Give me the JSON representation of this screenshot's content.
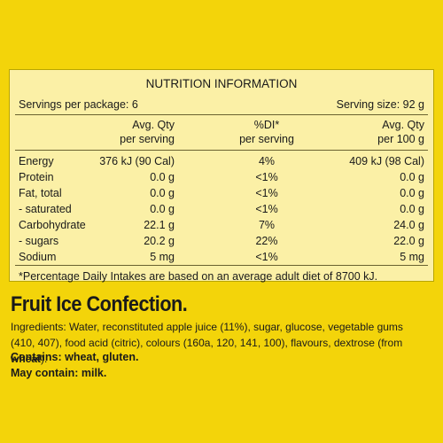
{
  "panel": {
    "title": "NUTRITION INFORMATION",
    "servings_per_package": "Servings per package: 6",
    "serving_size": "Serving size: 92 g",
    "headers": [
      [
        "Avg. Qty",
        "per serving"
      ],
      [
        "%DI*",
        "per serving"
      ],
      [
        "Avg. Qty",
        "per 100 g"
      ]
    ],
    "rows": [
      [
        "Energy",
        "376 kJ (90 Cal)",
        "4%",
        "409 kJ (98 Cal)"
      ],
      [
        "Protein",
        "0.0 g",
        "<1%",
        "0.0 g"
      ],
      [
        "Fat, total",
        "0.0 g",
        "<1%",
        "0.0 g"
      ],
      [
        "- saturated",
        "0.0 g",
        "<1%",
        "0.0 g"
      ],
      [
        "Carbohydrate",
        "22.1 g",
        "7%",
        "24.0 g"
      ],
      [
        "- sugars",
        "20.2 g",
        "22%",
        "22.0 g"
      ],
      [
        "Sodium",
        "5 mg",
        "<1%",
        "5 mg"
      ]
    ],
    "footnote": "*Percentage Daily Intakes are based on an average adult diet of 8700 kJ."
  },
  "product": {
    "name": "Fruit Ice Confection.",
    "ingredients": [
      "Ingredients: Water, reconstituted apple juice (11%), sugar, glucose, vegetable gums (410, 407), food acid (citric), colours (160a, 120, 141, 100), flavours, dextrose (from ",
      "wheat",
      ")."
    ],
    "contains": "Contains: wheat, gluten.",
    "may_contain": "May contain: milk."
  }
}
